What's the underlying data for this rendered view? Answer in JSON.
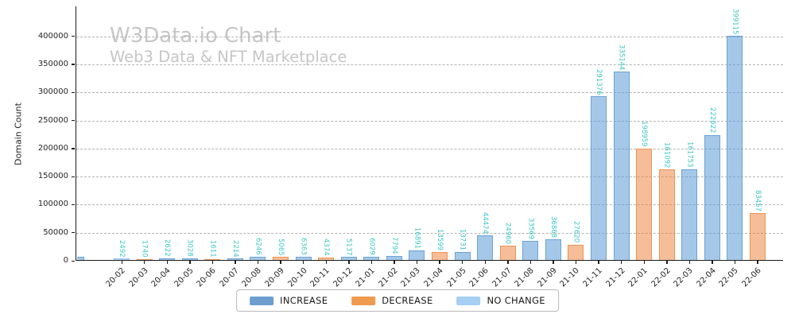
{
  "chart_data": {
    "type": "bar",
    "title": "W3Data.io Chart",
    "subtitle": "Web3 Data & NFT Marketplace",
    "xlabel": "",
    "ylabel": "Domain Count",
    "ylim": [
      0,
      453000
    ],
    "yticks": [
      0,
      50000,
      100000,
      150000,
      200000,
      250000,
      300000,
      350000,
      400000
    ],
    "grid": "horizontal dashed",
    "legend_position": "bottom center",
    "categories": [
      "20-02",
      "20-03",
      "20-04",
      "20-05",
      "20-06",
      "20-07",
      "20-08",
      "20-09",
      "20-10",
      "20-11",
      "20-12",
      "21-01",
      "21-02",
      "21-03",
      "21-04",
      "21-05",
      "21-06",
      "21-07",
      "21-08",
      "21-09",
      "21-10",
      "21-11",
      "21-12",
      "22-01",
      "22-02",
      "22-03",
      "22-04",
      "22-05",
      "22-06"
    ],
    "values": [
      2492,
      1740,
      2622,
      3028,
      1611,
      2214,
      6246,
      5065,
      6363,
      4374,
      5137,
      6029,
      7794,
      16891,
      13599,
      13731,
      44474,
      24960,
      33569,
      36868,
      27620,
      291376,
      335144,
      198959,
      161092,
      161753,
      222622,
      399115,
      83457
    ],
    "bar_types": [
      "no_change",
      "decrease",
      "increase",
      "increase",
      "decrease",
      "increase",
      "increase",
      "decrease",
      "increase",
      "decrease",
      "increase",
      "increase",
      "increase",
      "increase",
      "decrease",
      "increase",
      "increase",
      "decrease",
      "increase",
      "increase",
      "decrease",
      "increase",
      "increase",
      "decrease",
      "decrease",
      "increase",
      "increase",
      "increase",
      "decrease"
    ],
    "clipped_edge_bar": {
      "estimated_value": 6000,
      "type": "increase",
      "note": "partially visible bar at left axis edge, no label shown"
    },
    "value_label_color": "#3ec6c6",
    "watermark_color": "#c6c6c6",
    "bar_styles": {
      "increase": {
        "fill": "rgba(91,155,213,0.55)",
        "edge": "#6ba3d6"
      },
      "decrease": {
        "fill": "rgba(237,125,49,0.5)",
        "edge": "#ed9455"
      },
      "no_change": {
        "fill": "rgba(126,184,238,0.55)",
        "edge": "#8fc3ef"
      }
    },
    "legend": [
      {
        "label": "INCREASE",
        "color": "#6d9ecf"
      },
      {
        "label": "DECREASE",
        "color": "#ef9a4e"
      },
      {
        "label": "NO CHANGE",
        "color": "#a5cff3"
      }
    ]
  }
}
